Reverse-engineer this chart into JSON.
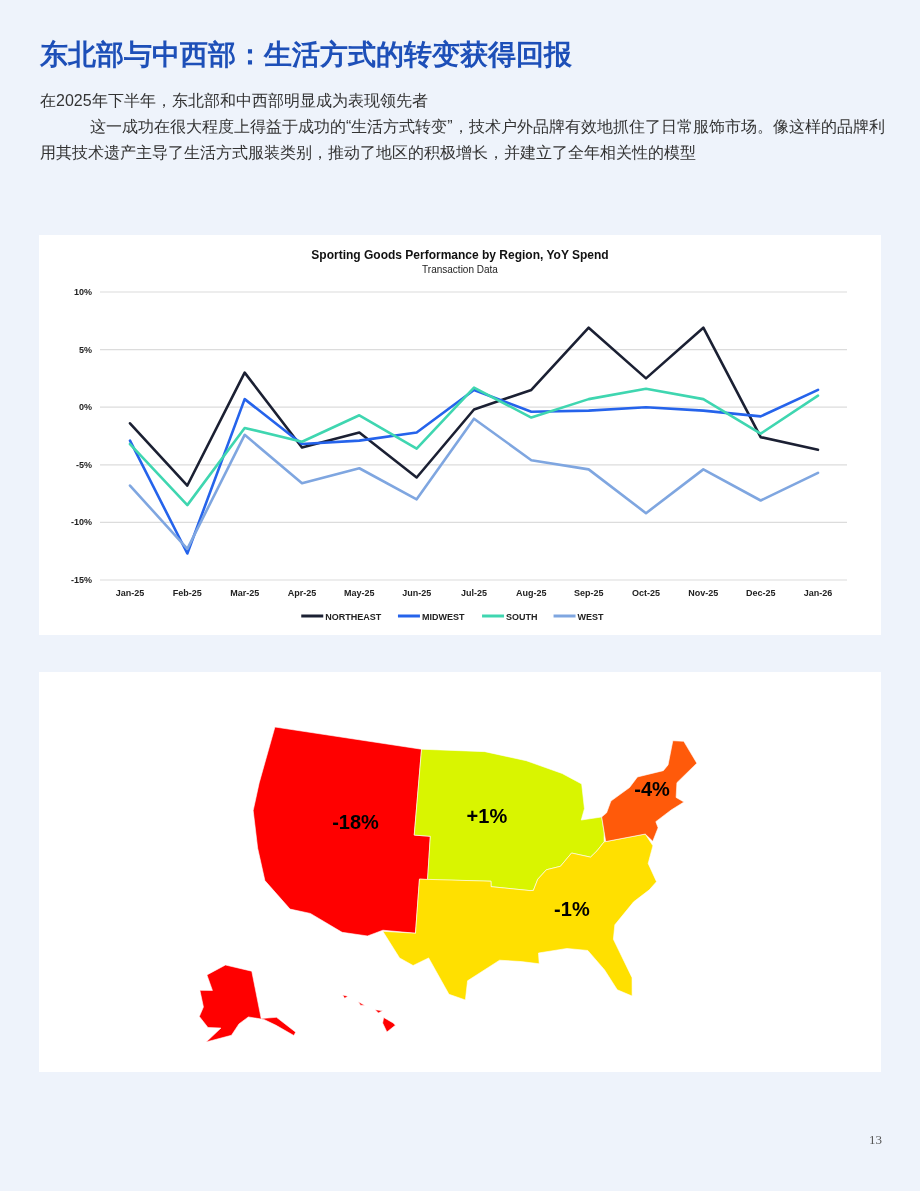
{
  "chart_data": [
    {
      "type": "other",
      "title": "东北部与中西部：生活方式的转变获得回报",
      "subtitle": "在2025年下半年，东北部和中西部明显成为表现领先者",
      "annotations": [
        "这一成功在很大程度上得益于成功的“生活方式转变”，技术户外品牌有效地抓住了日常服饰市场。像这样的品牌利用其技术遗产主导了生活方式服装类别，推动了地区的积极增长，并建立了全年相关性的模型",
        "13"
      ]
    },
    {
      "type": "line",
      "title": "Sporting Goods Performance by Region, YoY Spend",
      "subtitle": "Transaction Data",
      "categories": [
        "Jan-25",
        "Feb-25",
        "Mar-25",
        "Apr-25",
        "May-25",
        "Jun-25",
        "Jul-25",
        "Aug-25",
        "Sep-25",
        "Oct-25",
        "Nov-25",
        "Dec-25",
        "Jan-26"
      ],
      "series": [
        {
          "name": "NORTHEAST",
          "color": "#1b2033",
          "values": [
            -1.4,
            -6.8,
            3.0,
            -3.5,
            -2.2,
            -6.1,
            -0.2,
            1.5,
            6.9,
            2.5,
            6.9,
            -2.6,
            -3.7
          ]
        },
        {
          "name": "MIDWEST",
          "color": "#2563eb",
          "values": [
            -2.9,
            -12.7,
            0.7,
            -3.2,
            -2.9,
            -2.2,
            1.5,
            -0.4,
            -0.3,
            0,
            -0.3,
            -0.8,
            1.5
          ]
        },
        {
          "name": "SOUTH",
          "color": "#3fd6b0",
          "values": [
            -3.2,
            -8.5,
            -1.8,
            -3.0,
            -0.7,
            -3.6,
            1.7,
            -0.9,
            0.7,
            1.6,
            0.7,
            -2.3,
            1.0
          ]
        },
        {
          "name": "WEST",
          "color": "#7fa6e0",
          "values": [
            -6.8,
            -12.3,
            -2.4,
            -6.6,
            -5.3,
            -8.0,
            -1.0,
            -4.6,
            -5.4,
            -9.2,
            -5.4,
            -8.1,
            -5.7
          ]
        }
      ],
      "ylim": [
        -15,
        10
      ],
      "yticks": [
        {
          "value": -15,
          "label": "-15%"
        },
        {
          "value": -10,
          "label": "-10%"
        },
        {
          "value": -5,
          "label": "-5%"
        },
        {
          "value": 0,
          "label": "0%"
        },
        {
          "value": 5,
          "label": "5%"
        },
        {
          "value": 10,
          "label": "10%"
        }
      ],
      "grid": "y",
      "legend": "bottom",
      "marker": "none",
      "line_style": "solid"
    },
    {
      "type": "other",
      "annotations": [
        "-18%",
        "+1%",
        "-1%",
        "-4%"
      ]
    }
  ]
}
